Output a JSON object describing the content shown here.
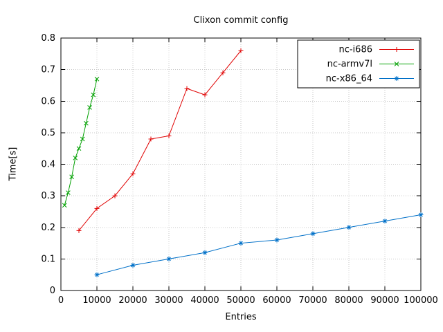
{
  "chart_data": {
    "type": "line",
    "title": "Clixon commit config",
    "xlabel": "Entries",
    "ylabel": "Time[s]",
    "xlim": [
      0,
      100000
    ],
    "ylim": [
      0,
      0.8
    ],
    "xticks": [
      0,
      10000,
      20000,
      30000,
      40000,
      50000,
      60000,
      70000,
      80000,
      90000,
      100000
    ],
    "yticks": [
      0,
      0.1,
      0.2,
      0.3,
      0.4,
      0.5,
      0.6,
      0.7,
      0.8
    ],
    "grid": true,
    "grid_color": "#c8c8c8",
    "axis_color": "#000000",
    "background_color": "#ffffff",
    "legend_position": "top-right",
    "series": [
      {
        "name": "nc-i686",
        "color": "#e00000",
        "marker": "plus",
        "x": [
          5000,
          10000,
          15000,
          20000,
          25000,
          30000,
          35000,
          40000,
          45000,
          50000
        ],
        "y": [
          0.19,
          0.26,
          0.3,
          0.37,
          0.48,
          0.49,
          0.64,
          0.62,
          0.69,
          0.76
        ]
      },
      {
        "name": "nc-armv7l",
        "color": "#00a000",
        "marker": "x",
        "x": [
          1000,
          2000,
          3000,
          4000,
          5000,
          6000,
          7000,
          8000,
          9000,
          10000
        ],
        "y": [
          0.27,
          0.31,
          0.36,
          0.42,
          0.45,
          0.48,
          0.53,
          0.58,
          0.62,
          0.67
        ]
      },
      {
        "name": "nc-x86_64",
        "color": "#0070c8",
        "marker": "asterisk",
        "x": [
          10000,
          20000,
          30000,
          40000,
          50000,
          60000,
          70000,
          80000,
          90000,
          100000
        ],
        "y": [
          0.05,
          0.08,
          0.1,
          0.12,
          0.15,
          0.16,
          0.18,
          0.2,
          0.22,
          0.24
        ]
      }
    ]
  }
}
